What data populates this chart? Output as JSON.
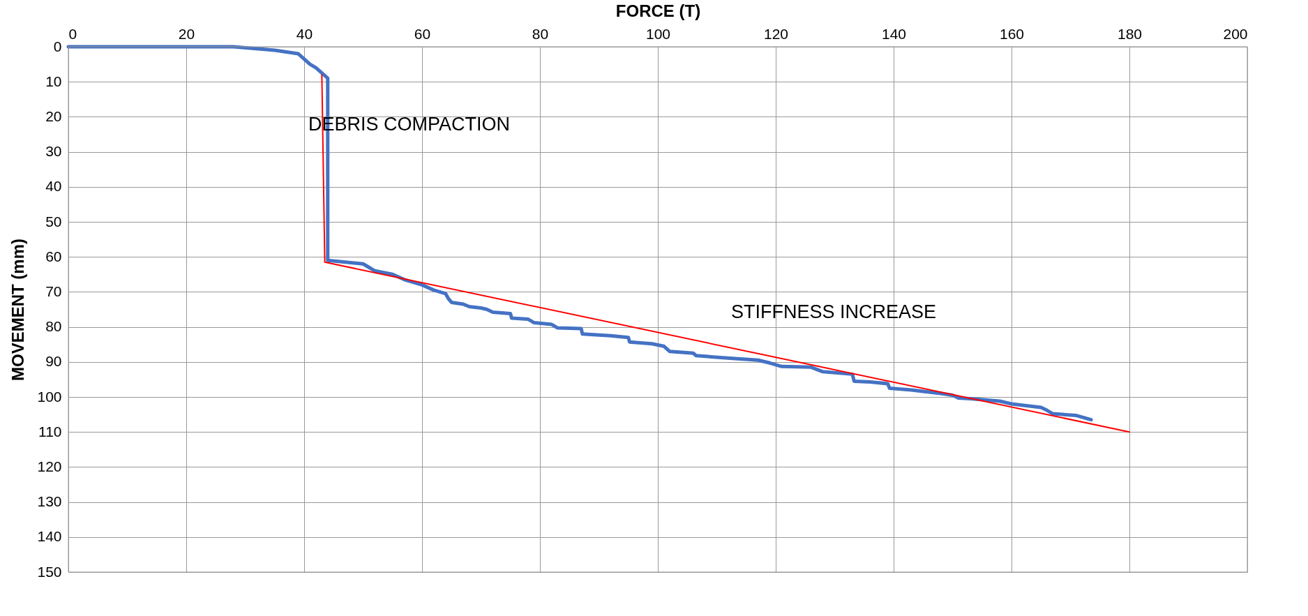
{
  "chart_data": {
    "type": "line",
    "xlabel": "FORCE (T)",
    "ylabel": "MOVEMENT (mm)",
    "xlim": [
      0,
      200
    ],
    "xticks": [
      0,
      20,
      40,
      60,
      80,
      100,
      120,
      140,
      160,
      180,
      200
    ],
    "ylim": [
      150,
      0
    ],
    "yticks": [
      0,
      10,
      20,
      30,
      40,
      50,
      60,
      70,
      80,
      90,
      100,
      110,
      120,
      130,
      140,
      150
    ],
    "grid": true,
    "marker": "none",
    "line_style": "solid",
    "series": [
      {
        "color": "#4472c4",
        "x": [
          0,
          28,
          35,
          39,
          40,
          41,
          42,
          43,
          44,
          44,
          47,
          50,
          51,
          52,
          55,
          57,
          60,
          62,
          63,
          64,
          64.5,
          65,
          67,
          68,
          70,
          71,
          72,
          75,
          75.2,
          78,
          79,
          82,
          83,
          87,
          87.2,
          92,
          95,
          95.2,
          99,
          101,
          102,
          106,
          106.5,
          111,
          117,
          119,
          121,
          126,
          128,
          133,
          133.3,
          136,
          139,
          139.3,
          143,
          148,
          150,
          151,
          153,
          158,
          160,
          165,
          166,
          167,
          171,
          173.5
        ],
        "values": [
          0,
          0,
          1,
          2,
          3.5,
          5,
          6,
          7.5,
          9,
          61,
          61.5,
          62,
          63,
          64,
          65,
          66.5,
          68,
          69.5,
          70,
          70.5,
          72,
          73,
          73.5,
          74.2,
          74.6,
          75,
          75.8,
          76.2,
          77.5,
          77.8,
          78.8,
          79.3,
          80.3,
          80.5,
          82,
          82.5,
          83,
          84.3,
          84.8,
          85.5,
          87,
          87.5,
          88.2,
          88.8,
          89.5,
          90.3,
          91.3,
          91.5,
          92.8,
          93.5,
          95.5,
          95.7,
          96.2,
          97.5,
          98,
          99,
          99.5,
          100.3,
          100.5,
          101.2,
          102,
          103,
          103.8,
          104.8,
          105.3,
          106.5
        ]
      },
      {
        "type": "line",
        "color": "#ff0000",
        "x": [
          43,
          43.5,
          180
        ],
        "values": [
          8,
          61.5,
          110
        ]
      }
    ],
    "annotations": [
      "DEBRIS COMPACTION",
      "STIFFNESS INCREASE"
    ]
  }
}
